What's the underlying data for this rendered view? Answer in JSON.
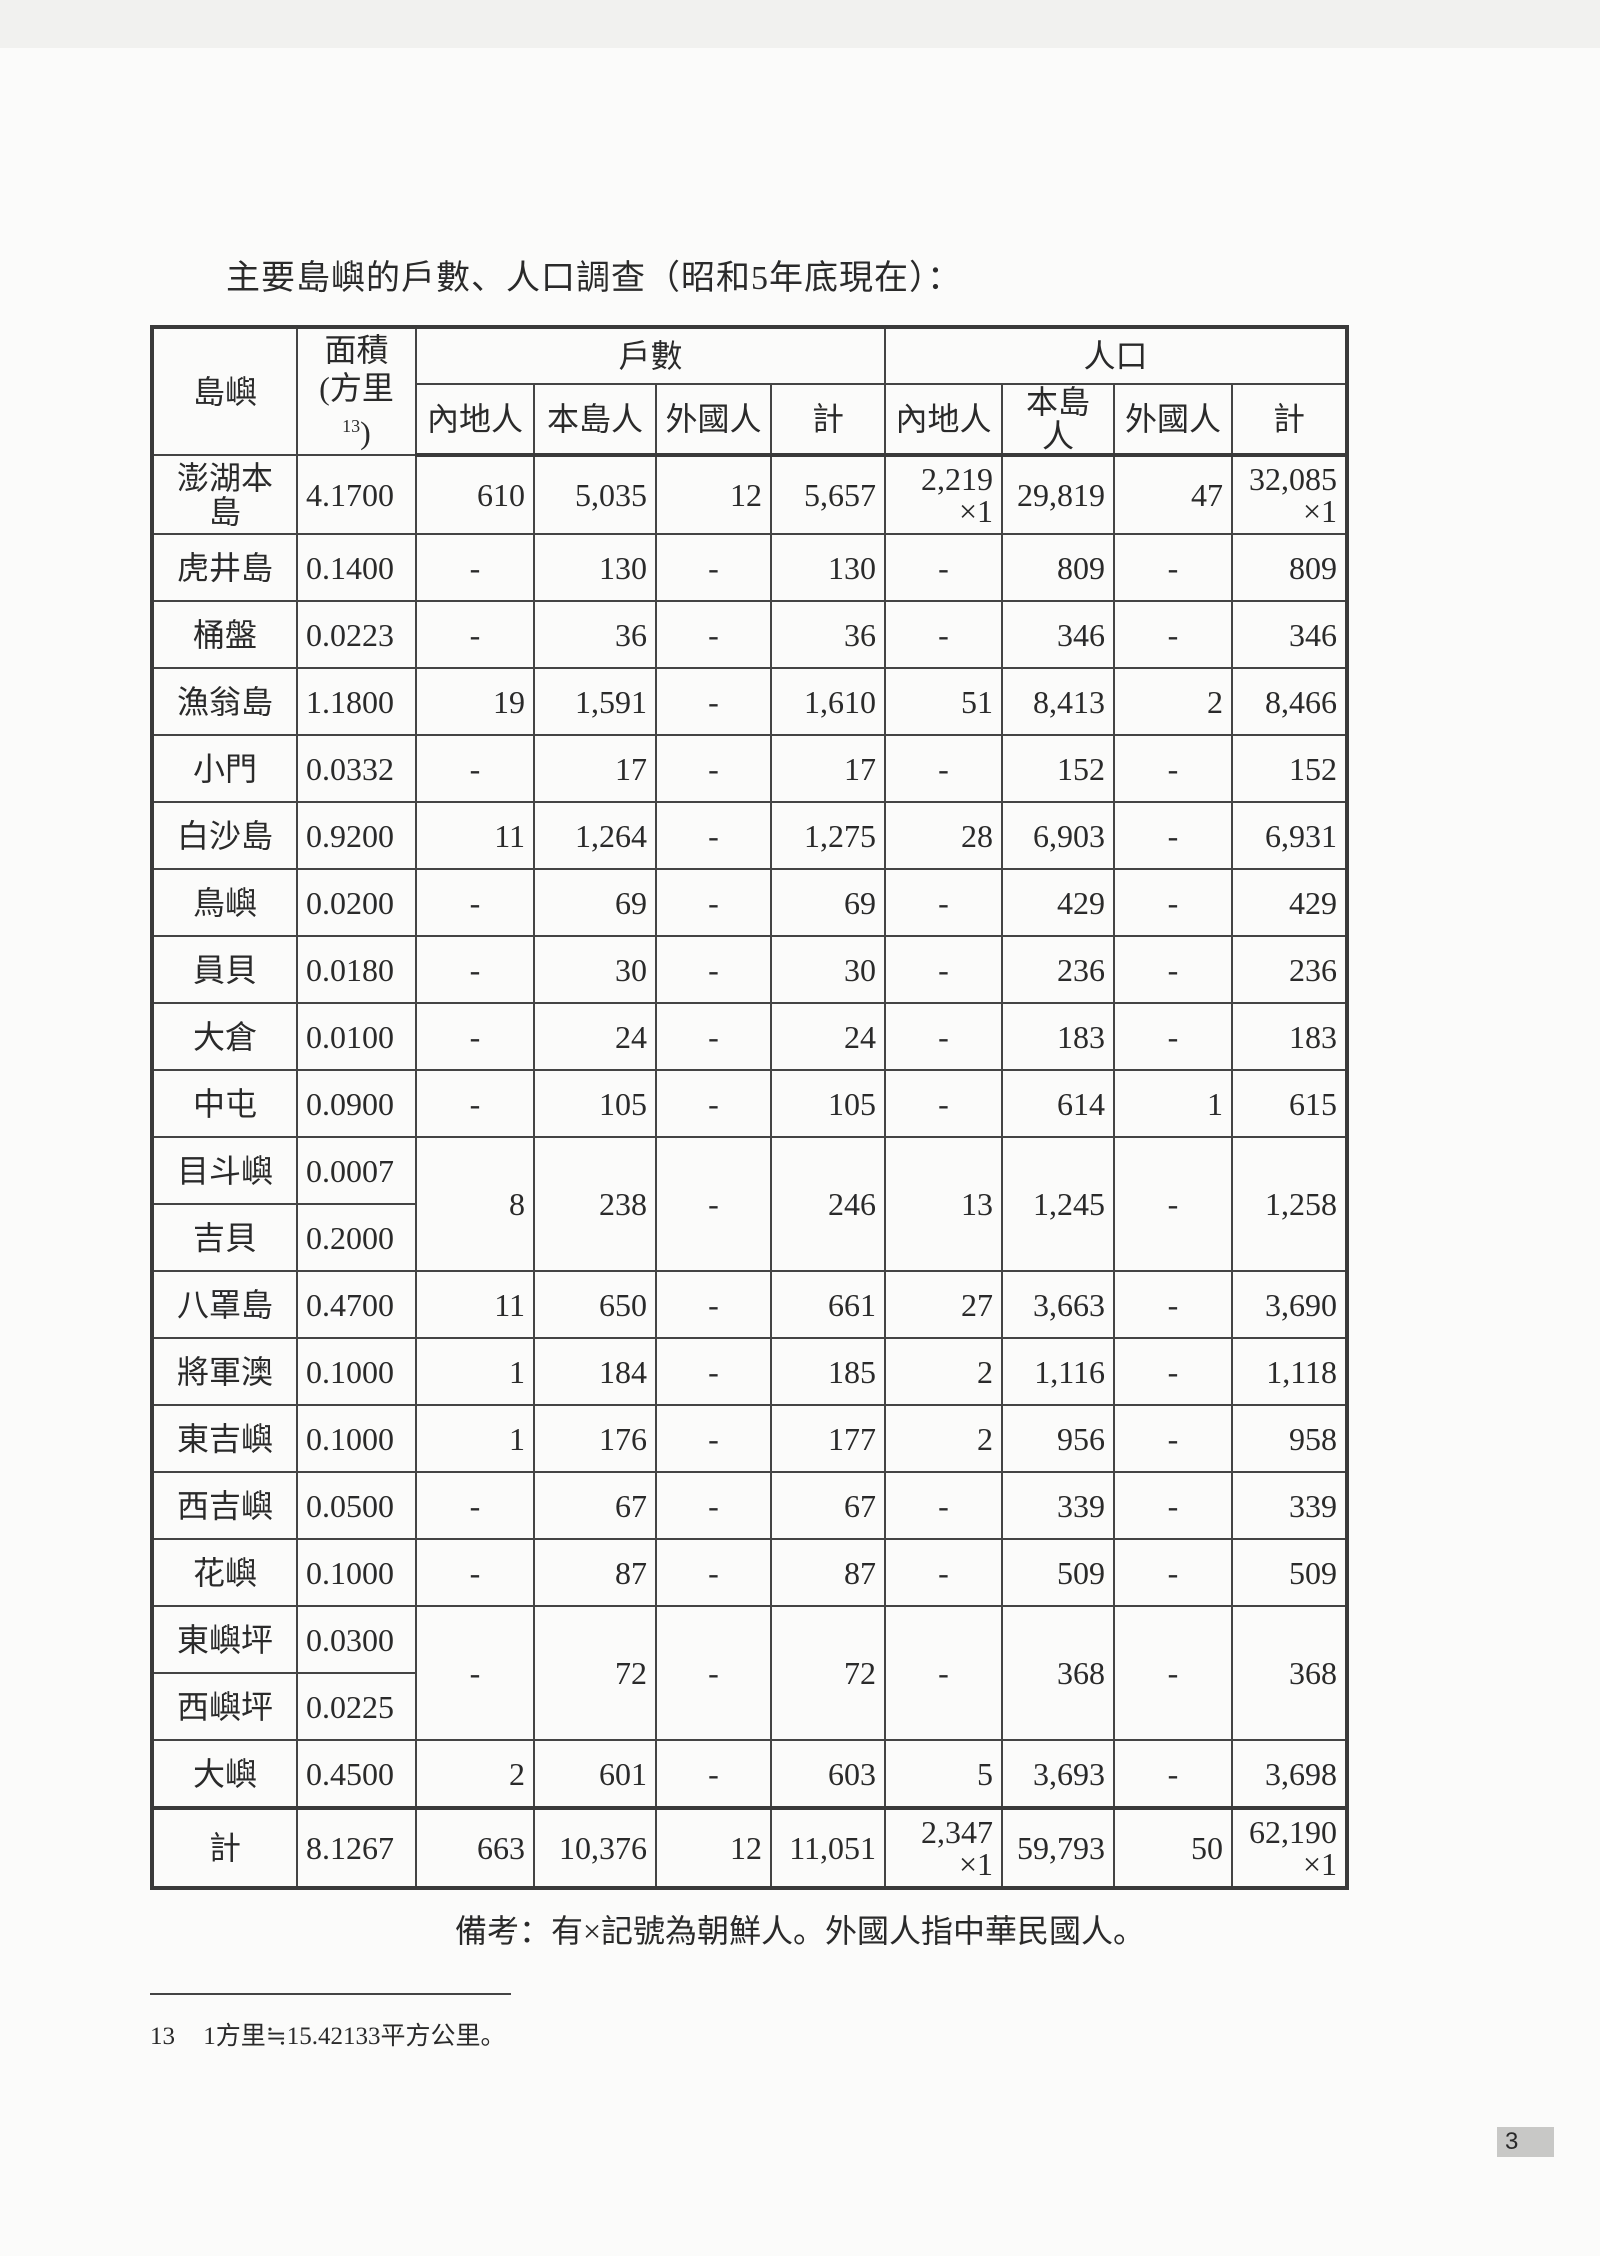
{
  "title": "主要島嶼的戶數、人口調查（昭和5年底現在）：",
  "table": {
    "header": {
      "island": "島嶼",
      "area": "面積",
      "area_unit": "(方里",
      "area_sup": "13",
      "area_close": ")",
      "households": "戶數",
      "population": "人口",
      "sub": [
        "內地人",
        "本島人",
        "外國人",
        "計",
        "內地人",
        "本島人",
        "外國人",
        "計"
      ]
    },
    "rows": [
      {
        "islands": [
          {
            "name": "澎湖本島",
            "area": "4.1700"
          }
        ],
        "values": [
          "610",
          "5,035",
          "12",
          "5,657",
          {
            "v": "2,219",
            "m": "×1"
          },
          "29,819",
          "47",
          {
            "v": "32,085",
            "m": "×1"
          }
        ]
      },
      {
        "islands": [
          {
            "name": "虎井島",
            "area": "0.1400"
          }
        ],
        "values": [
          "-",
          "130",
          "-",
          "130",
          "-",
          "809",
          "-",
          "809"
        ]
      },
      {
        "islands": [
          {
            "name": "桶盤",
            "area": "0.0223"
          }
        ],
        "values": [
          "-",
          "36",
          "-",
          "36",
          "-",
          "346",
          "-",
          "346"
        ]
      },
      {
        "islands": [
          {
            "name": "漁翁島",
            "area": "1.1800"
          }
        ],
        "values": [
          "19",
          "1,591",
          "-",
          "1,610",
          "51",
          "8,413",
          "2",
          "8,466"
        ]
      },
      {
        "islands": [
          {
            "name": "小門",
            "area": "0.0332"
          }
        ],
        "values": [
          "-",
          "17",
          "-",
          "17",
          "-",
          "152",
          "-",
          "152"
        ]
      },
      {
        "islands": [
          {
            "name": "白沙島",
            "area": "0.9200"
          }
        ],
        "values": [
          "11",
          "1,264",
          "-",
          "1,275",
          "28",
          "6,903",
          "-",
          "6,931"
        ]
      },
      {
        "islands": [
          {
            "name": "鳥嶼",
            "area": "0.0200"
          }
        ],
        "values": [
          "-",
          "69",
          "-",
          "69",
          "-",
          "429",
          "-",
          "429"
        ]
      },
      {
        "islands": [
          {
            "name": "員貝",
            "area": "0.0180"
          }
        ],
        "values": [
          "-",
          "30",
          "-",
          "30",
          "-",
          "236",
          "-",
          "236"
        ]
      },
      {
        "islands": [
          {
            "name": "大倉",
            "area": "0.0100"
          }
        ],
        "values": [
          "-",
          "24",
          "-",
          "24",
          "-",
          "183",
          "-",
          "183"
        ]
      },
      {
        "islands": [
          {
            "name": "中屯",
            "area": "0.0900"
          }
        ],
        "values": [
          "-",
          "105",
          "-",
          "105",
          "-",
          "614",
          "1",
          "615"
        ]
      },
      {
        "islands": [
          {
            "name": "目斗嶼",
            "area": "0.0007"
          },
          {
            "name": "吉貝",
            "area": "0.2000"
          }
        ],
        "values": [
          "8",
          "238",
          "-",
          "246",
          "13",
          "1,245",
          "-",
          "1,258"
        ]
      },
      {
        "islands": [
          {
            "name": "八罩島",
            "area": "0.4700"
          }
        ],
        "values": [
          "11",
          "650",
          "-",
          "661",
          "27",
          "3,663",
          "-",
          "3,690"
        ]
      },
      {
        "islands": [
          {
            "name": "將軍澳",
            "area": "0.1000"
          }
        ],
        "values": [
          "1",
          "184",
          "-",
          "185",
          "2",
          "1,116",
          "-",
          "1,118"
        ]
      },
      {
        "islands": [
          {
            "name": "東吉嶼",
            "area": "0.1000"
          }
        ],
        "values": [
          "1",
          "176",
          "-",
          "177",
          "2",
          "956",
          "-",
          "958"
        ]
      },
      {
        "islands": [
          {
            "name": "西吉嶼",
            "area": "0.0500"
          }
        ],
        "values": [
          "-",
          "67",
          "-",
          "67",
          "-",
          "339",
          "-",
          "339"
        ]
      },
      {
        "islands": [
          {
            "name": "花嶼",
            "area": "0.1000"
          }
        ],
        "values": [
          "-",
          "87",
          "-",
          "87",
          "-",
          "509",
          "-",
          "509"
        ]
      },
      {
        "islands": [
          {
            "name": "東嶼坪",
            "area": "0.0300"
          },
          {
            "name": "西嶼坪",
            "area": "0.0225"
          }
        ],
        "values": [
          "-",
          "72",
          "-",
          "72",
          "-",
          "368",
          "-",
          "368"
        ]
      },
      {
        "islands": [
          {
            "name": "大嶼",
            "area": "0.4500"
          }
        ],
        "values": [
          "2",
          "601",
          "-",
          "603",
          "5",
          "3,693",
          "-",
          "3,698"
        ]
      }
    ],
    "total": {
      "islands": [
        {
          "name": "計",
          "area": "8.1267"
        }
      ],
      "values": [
        "663",
        "10,376",
        "12",
        "11,051",
        {
          "v": "2,347",
          "m": "×1"
        },
        "59,793",
        "50",
        {
          "v": "62,190",
          "m": "×1"
        }
      ]
    }
  },
  "note": "備考：有×記號為朝鮮人。外國人指中華民國人。",
  "footnote": {
    "number": "13",
    "text": "1方里≒15.42133平方公里。"
  },
  "page_number": "3"
}
